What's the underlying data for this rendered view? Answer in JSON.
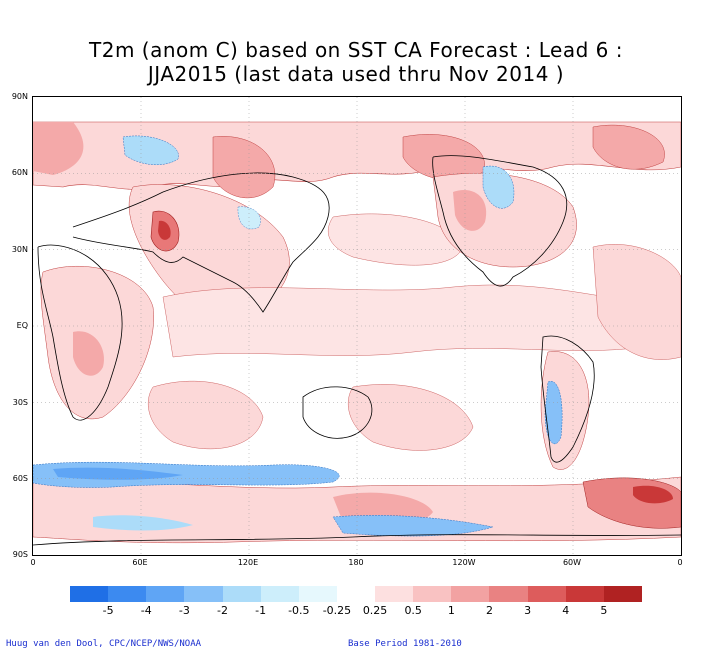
{
  "title": {
    "line1": "T2m (anom C) based on SST CA Forecast : Lead 6 :",
    "line2": "JJA2015 (last data used thru Nov 2014 )"
  },
  "map": {
    "lat_ticks": [
      "90N",
      "60N",
      "30N",
      "EQ",
      "30S",
      "60S",
      "90S"
    ],
    "lon_ticks": [
      "0",
      "60E",
      "120E",
      "180",
      "120W",
      "60W",
      "0"
    ]
  },
  "colorbar": {
    "labels": [
      "-5",
      "-4",
      "-3",
      "-2",
      "-1",
      "-0.5",
      "-0.25",
      "0.25",
      "0.5",
      "1",
      "2",
      "3",
      "4",
      "5"
    ],
    "colors": [
      "#1f6fe6",
      "#3c8af0",
      "#5fa5f5",
      "#86c0f8",
      "#acdcf9",
      "#cdeefb",
      "#e6f8fd",
      "#ffffff",
      "#fde0e0",
      "#f9c2c2",
      "#f2a2a2",
      "#e98282",
      "#dd5c5c",
      "#c93838",
      "#b02222"
    ]
  },
  "footer": {
    "left": "Huug van den Dool, CPC/NCEP/NWS/NOAA",
    "right": "Base Period 1981-2010"
  }
}
